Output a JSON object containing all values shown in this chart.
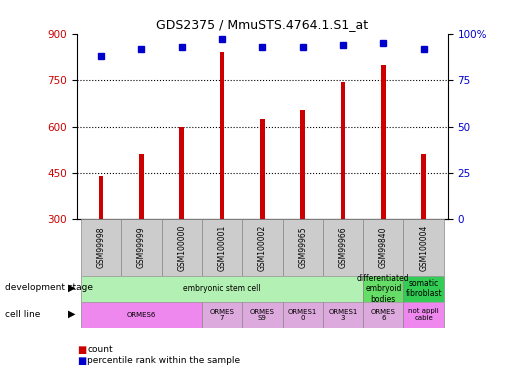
{
  "title": "GDS2375 / MmuSTS.4764.1.S1_at",
  "samples": [
    "GSM99998",
    "GSM99999",
    "GSM100000",
    "GSM100001",
    "GSM100002",
    "GSM99965",
    "GSM99966",
    "GSM99840",
    "GSM100004"
  ],
  "counts": [
    440,
    510,
    600,
    840,
    625,
    655,
    745,
    800,
    510
  ],
  "percentiles": [
    88,
    92,
    93,
    97,
    93,
    93,
    94,
    95,
    92
  ],
  "ymin": 300,
  "ymax": 900,
  "yticks": [
    300,
    450,
    600,
    750,
    900
  ],
  "y2ticks": [
    0,
    25,
    50,
    75,
    100
  ],
  "bar_color": "#cc0000",
  "dot_color": "#0000cc",
  "tick_label_color_left": "#cc0000",
  "tick_label_color_right": "#0000cc",
  "legend_count_color": "#cc0000",
  "legend_pct_color": "#0000cc",
  "dev_groups": [
    [
      0,
      6,
      "embryonic stem cell",
      "#b3f0b3"
    ],
    [
      7,
      7,
      "differentiated\nembryoid\nbodies",
      "#66dd66"
    ],
    [
      8,
      8,
      "somatic\nfibroblast",
      "#33cc55"
    ]
  ],
  "cell_groups": [
    [
      0,
      2,
      "ORMES6",
      "#ee88ee"
    ],
    [
      3,
      3,
      "ORMES\n7",
      "#ddaadd"
    ],
    [
      4,
      4,
      "ORMES\nS9",
      "#ddaadd"
    ],
    [
      5,
      5,
      "ORMES1\n0",
      "#ddaadd"
    ],
    [
      6,
      6,
      "ORMES1\n3",
      "#ddaadd"
    ],
    [
      7,
      7,
      "ORMES\n6",
      "#ddaadd"
    ],
    [
      8,
      8,
      "not appli\ncable",
      "#ee88ee"
    ]
  ]
}
